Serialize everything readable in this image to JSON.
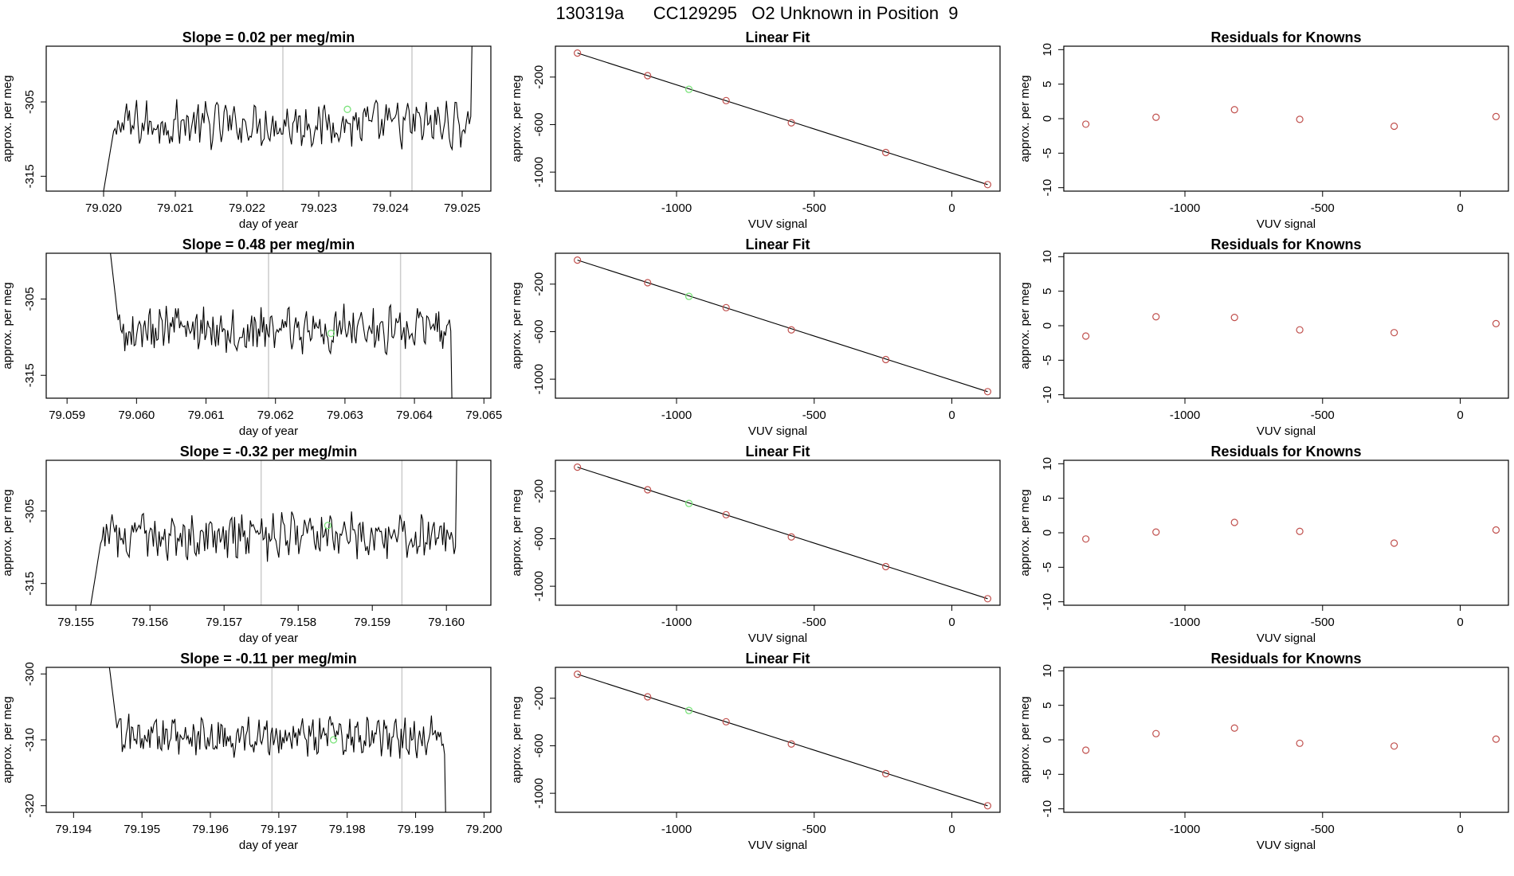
{
  "header": {
    "title": "130319a      CC129295   O2 Unknown in Position  9"
  },
  "chart_data": [
    {
      "type": "line",
      "title": "Slope =  0.02  per meg/min",
      "xlabel": "day of year",
      "ylabel": "approx. per meg",
      "xlim": [
        79.0192,
        79.0254
      ],
      "ylim": [
        -317,
        -297.5
      ],
      "x_ticks": [
        "79.020",
        "79.021",
        "79.022",
        "79.023",
        "79.024",
        "79.025"
      ],
      "y_ticks": [
        "-305",
        "-315"
      ],
      "vlines": [
        79.0225,
        79.0243
      ],
      "series": [
        {
          "start": 79.02,
          "end": 79.0252,
          "base": -308,
          "noise": 2.5,
          "values": []
        }
      ],
      "marker": {
        "x": 79.0234,
        "y": -306,
        "color": "#7be37b"
      }
    },
    {
      "type": "scatter",
      "title": "Linear Fit",
      "xlabel": "VUV signal",
      "ylabel": "approx. per meg",
      "xlim": [
        -1440,
        175
      ],
      "ylim": [
        -1160,
        60
      ],
      "x_ticks": [
        "-1000",
        "-500",
        "0"
      ],
      "y_ticks": [
        "-200",
        "-600",
        "-1000"
      ],
      "fit_line": {
        "x": [
          -1360,
          130
        ],
        "y": [
          2,
          -1105
        ]
      },
      "points": [
        [
          -1360,
          2
        ],
        [
          -1105,
          -188
        ],
        [
          -820,
          -398
        ],
        [
          -583,
          -585
        ],
        [
          -240,
          -835
        ],
        [
          130,
          -1105
        ]
      ],
      "green_point": [
        -955,
        -303
      ]
    },
    {
      "type": "scatter",
      "title": "Residuals for Knowns",
      "xlabel": "VUV signal",
      "ylabel": "approx. per meg",
      "xlim": [
        -1440,
        175
      ],
      "ylim": [
        -10.5,
        10.5
      ],
      "x_ticks": [
        "-1000",
        "-500",
        "0"
      ],
      "y_ticks": [
        "10",
        "5",
        "0",
        "-5",
        "-10"
      ],
      "points": [
        [
          -1360,
          -0.8
        ],
        [
          -1105,
          0.2
        ],
        [
          -820,
          1.3
        ],
        [
          -583,
          -0.1
        ],
        [
          -240,
          -1.1
        ],
        [
          130,
          0.3
        ]
      ]
    },
    {
      "type": "line",
      "title": "Slope =  0.48  per meg/min",
      "xlabel": "day of year",
      "ylabel": "approx. per meg",
      "xlim": [
        79.0587,
        79.0651
      ],
      "ylim": [
        -318,
        -299
      ],
      "x_ticks": [
        "79.059",
        "79.060",
        "79.061",
        "79.062",
        "79.063",
        "79.064",
        "79.065"
      ],
      "y_ticks": [
        "-305",
        "-315"
      ],
      "vlines": [
        79.0619,
        79.0638
      ],
      "series": [
        {
          "start": 79.0596,
          "end": 79.0646,
          "base": -309,
          "noise": 2.5,
          "values": []
        }
      ],
      "marker": {
        "x": 79.0628,
        "y": -309.5,
        "color": "#7be37b"
      }
    },
    {
      "type": "scatter",
      "title": "Linear Fit",
      "xlabel": "VUV signal",
      "ylabel": "approx. per meg",
      "xlim": [
        -1440,
        175
      ],
      "ylim": [
        -1160,
        60
      ],
      "x_ticks": [
        "-1000",
        "-500",
        "0"
      ],
      "y_ticks": [
        "-200",
        "-600",
        "-1000"
      ],
      "fit_line": {
        "x": [
          -1360,
          130
        ],
        "y": [
          2,
          -1105
        ]
      },
      "points": [
        [
          -1360,
          2
        ],
        [
          -1105,
          -188
        ],
        [
          -820,
          -398
        ],
        [
          -583,
          -585
        ],
        [
          -240,
          -835
        ],
        [
          130,
          -1105
        ]
      ],
      "green_point": [
        -955,
        -303
      ]
    },
    {
      "type": "scatter",
      "title": "Residuals for Knowns",
      "xlabel": "VUV signal",
      "ylabel": "approx. per meg",
      "xlim": [
        -1440,
        175
      ],
      "ylim": [
        -10.5,
        10.5
      ],
      "x_ticks": [
        "-1000",
        "-500",
        "0"
      ],
      "y_ticks": [
        "10",
        "5",
        "0",
        "-5",
        "-10"
      ],
      "points": [
        [
          -1360,
          -1.5
        ],
        [
          -1105,
          1.3
        ],
        [
          -820,
          1.2
        ],
        [
          -583,
          -0.6
        ],
        [
          -240,
          -1.0
        ],
        [
          130,
          0.3
        ]
      ]
    },
    {
      "type": "line",
      "title": "Slope =  -0.32  per meg/min",
      "xlabel": "day of year",
      "ylabel": "approx. per meg",
      "xlim": [
        79.1546,
        79.1606
      ],
      "ylim": [
        -318,
        -298
      ],
      "x_ticks": [
        "79.155",
        "79.156",
        "79.157",
        "79.158",
        "79.159",
        "79.160"
      ],
      "y_ticks": [
        "-305",
        "-315"
      ],
      "vlines": [
        79.1575,
        79.1594
      ],
      "series": [
        {
          "start": 79.1552,
          "end": 79.1602,
          "base": -308.5,
          "noise": 2.5,
          "values": []
        }
      ],
      "marker": {
        "x": 79.1584,
        "y": -307,
        "color": "#7be37b"
      }
    },
    {
      "type": "scatter",
      "title": "Linear Fit",
      "xlabel": "VUV signal",
      "ylabel": "approx. per meg",
      "xlim": [
        -1440,
        175
      ],
      "ylim": [
        -1160,
        60
      ],
      "x_ticks": [
        "-1000",
        "-500",
        "0"
      ],
      "y_ticks": [
        "-200",
        "-600",
        "-1000"
      ],
      "fit_line": {
        "x": [
          -1360,
          130
        ],
        "y": [
          2,
          -1105
        ]
      },
      "points": [
        [
          -1360,
          2
        ],
        [
          -1105,
          -188
        ],
        [
          -820,
          -398
        ],
        [
          -583,
          -585
        ],
        [
          -240,
          -835
        ],
        [
          130,
          -1105
        ]
      ],
      "green_point": [
        -955,
        -303
      ]
    },
    {
      "type": "scatter",
      "title": "Residuals for Knowns",
      "xlabel": "VUV signal",
      "ylabel": "approx. per meg",
      "xlim": [
        -1440,
        175
      ],
      "ylim": [
        -10.5,
        10.5
      ],
      "x_ticks": [
        "-1000",
        "-500",
        "0"
      ],
      "y_ticks": [
        "10",
        "5",
        "0",
        "-5",
        "-10"
      ],
      "points": [
        [
          -1360,
          -0.9
        ],
        [
          -1105,
          0.1
        ],
        [
          -820,
          1.5
        ],
        [
          -583,
          0.2
        ],
        [
          -240,
          -1.5
        ],
        [
          130,
          0.4
        ]
      ]
    },
    {
      "type": "line",
      "title": "Slope =  -0.11  per meg/min",
      "xlabel": "day of year",
      "ylabel": "approx. per meg",
      "xlim": [
        79.1936,
        79.2001
      ],
      "ylim": [
        -321,
        -299
      ],
      "x_ticks": [
        "79.194",
        "79.195",
        "79.196",
        "79.197",
        "79.198",
        "79.199",
        "79.200"
      ],
      "y_ticks": [
        "-300",
        "-310",
        "-320"
      ],
      "vlines": [
        79.1969,
        79.1988
      ],
      "series": [
        {
          "start": 79.1945,
          "end": 79.1995,
          "base": -309.5,
          "noise": 2.5,
          "values": []
        }
      ],
      "marker": {
        "x": 79.1978,
        "y": -310,
        "color": "#7be37b"
      }
    },
    {
      "type": "scatter",
      "title": "Linear Fit",
      "xlabel": "VUV signal",
      "ylabel": "approx. per meg",
      "xlim": [
        -1440,
        175
      ],
      "ylim": [
        -1160,
        60
      ],
      "x_ticks": [
        "-1000",
        "-500",
        "0"
      ],
      "y_ticks": [
        "-200",
        "-600",
        "-1000"
      ],
      "fit_line": {
        "x": [
          -1360,
          130
        ],
        "y": [
          2,
          -1105
        ]
      },
      "points": [
        [
          -1360,
          2
        ],
        [
          -1105,
          -188
        ],
        [
          -820,
          -398
        ],
        [
          -583,
          -585
        ],
        [
          -240,
          -835
        ],
        [
          130,
          -1105
        ]
      ],
      "green_point": [
        -955,
        -303
      ]
    },
    {
      "type": "scatter",
      "title": "Residuals for Knowns",
      "xlabel": "VUV signal",
      "ylabel": "approx. per meg",
      "xlim": [
        -1440,
        175
      ],
      "ylim": [
        -10.5,
        10.5
      ],
      "x_ticks": [
        "-1000",
        "-500",
        "0"
      ],
      "y_ticks": [
        "10",
        "5",
        "0",
        "-5",
        "-10"
      ],
      "points": [
        [
          -1360,
          -1.5
        ],
        [
          -1105,
          0.9
        ],
        [
          -820,
          1.7
        ],
        [
          -583,
          -0.5
        ],
        [
          -240,
          -0.9
        ],
        [
          130,
          0.1
        ]
      ]
    }
  ]
}
